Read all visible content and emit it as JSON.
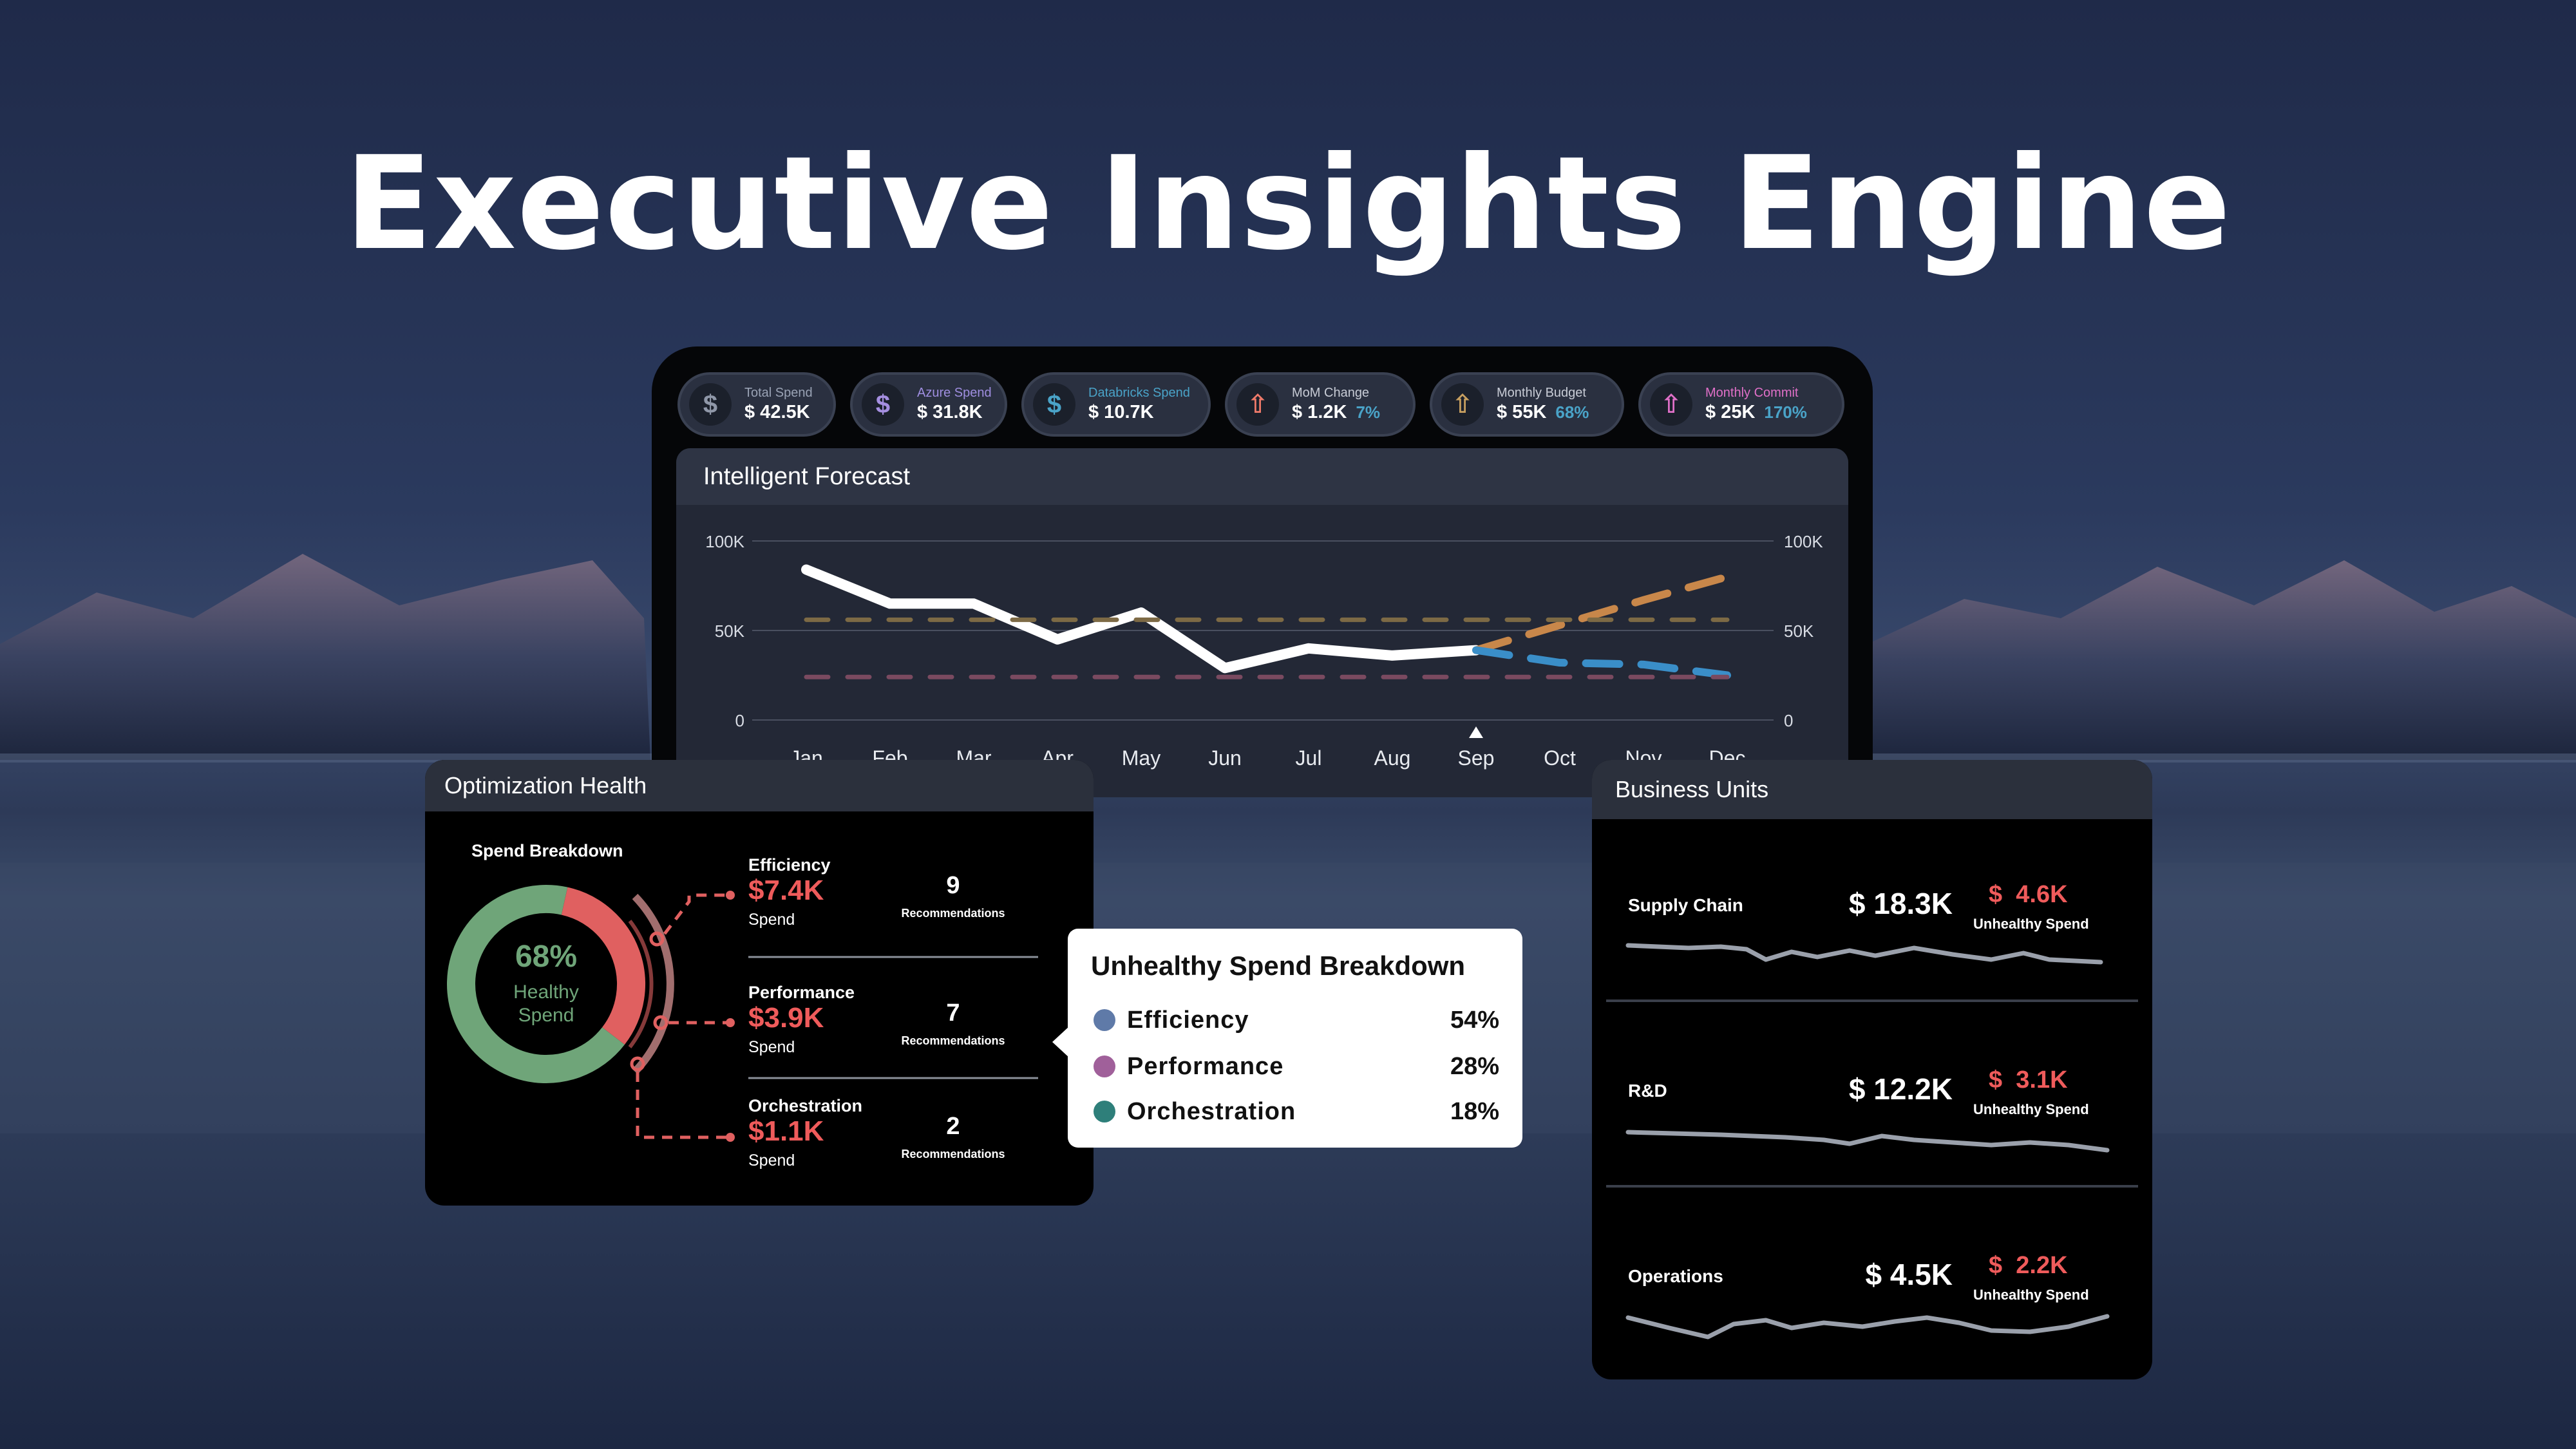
{
  "hero": {
    "title": "Executive Insights Engine"
  },
  "kpis": [
    {
      "label": "Total Spend",
      "value": "$ 42.5K",
      "icon": "dollar-icon",
      "icon_color": "#8f97a8",
      "label_color": "#9aa3b5"
    },
    {
      "label": "Azure Spend",
      "value": "$ 31.8K",
      "icon": "dollar-icon",
      "icon_color": "#a58fe0",
      "label_color": "#9f8ee0"
    },
    {
      "label": "Databricks Spend",
      "value": "$ 10.7K",
      "icon": "dollar-icon",
      "icon_color": "#4aa3c8",
      "label_color": "#4aa3c8"
    },
    {
      "label": "MoM Change",
      "value": "$ 1.2K",
      "pct": "7%",
      "icon": "arrow-up-icon",
      "icon_color": "#ef7a6a",
      "label_color": "#c8ccd6",
      "pct_color": "#4aa3c8"
    },
    {
      "label": "Monthly Budget",
      "value": "$ 55K",
      "pct": "68%",
      "icon": "arrow-up-icon",
      "icon_color": "#c8a060",
      "label_color": "#c8ccd6",
      "pct_color": "#4aa3c8"
    },
    {
      "label": "Monthly Commit",
      "value": "$ 25K",
      "pct": "170%",
      "icon": "arrow-up-icon",
      "icon_color": "#e070c8",
      "label_color": "#e070c8",
      "pct_color": "#4aa3c8"
    }
  ],
  "forecast": {
    "title": "Intelligent Forecast",
    "y_ticks_left": [
      "100K",
      "50K",
      "0"
    ],
    "y_ticks_right": [
      "100K",
      "50K",
      "0"
    ],
    "months": [
      "Jan",
      "Feb",
      "Mar",
      "Apr",
      "May",
      "Jun",
      "Jul",
      "Aug",
      "Sep",
      "Oct",
      "Nov",
      "Dec"
    ],
    "marker_month": "Sep",
    "chart_data": {
      "type": "line",
      "categories": [
        "Jan",
        "Feb",
        "Mar",
        "Apr",
        "May",
        "Jun",
        "Jul",
        "Aug",
        "Sep",
        "Oct",
        "Nov",
        "Dec"
      ],
      "ylim": [
        0,
        100000
      ],
      "series": [
        {
          "values": [
            84000,
            65000,
            65000,
            45000,
            60000,
            29000,
            40000,
            36000,
            39000,
            null,
            null,
            null
          ],
          "color": "#ffffff"
        },
        {
          "values": [
            null,
            null,
            null,
            null,
            null,
            null,
            null,
            null,
            39000,
            53000,
            67000,
            80000
          ],
          "color": "#c8874a"
        },
        {
          "values": [
            null,
            null,
            null,
            null,
            null,
            null,
            null,
            null,
            39000,
            32000,
            31000,
            25000
          ],
          "color": "#3a8ec8"
        },
        {
          "values": [
            56000,
            56000,
            56000,
            56000,
            56000,
            56000,
            56000,
            56000,
            56000,
            56000,
            56000,
            56000
          ],
          "color": "#7d6a45"
        },
        {
          "values": [
            24000,
            24000,
            24000,
            24000,
            24000,
            24000,
            24000,
            24000,
            24000,
            24000,
            24000,
            24000
          ],
          "color": "#7a4a60"
        }
      ]
    }
  },
  "optimization": {
    "title": "Optimization Health",
    "breakdown_title": "Spend Breakdown",
    "donut_pct": "68%",
    "donut_label_1": "Healthy",
    "donut_label_2": "Spend",
    "chart_data": {
      "type": "pie",
      "categories": [
        "Healthy Spend",
        "Unhealthy Spend"
      ],
      "values": [
        68,
        32
      ],
      "colors": [
        "#6fa579",
        "#e06060"
      ]
    },
    "items": [
      {
        "name": "Efficiency",
        "spend": "$7.4K",
        "spend_label": "Spend",
        "count": "9",
        "count_label": "Recommendations"
      },
      {
        "name": "Performance",
        "spend": "$3.9K",
        "spend_label": "Spend",
        "count": "7",
        "count_label": "Recommendations"
      },
      {
        "name": "Orchestration",
        "spend": "$1.1K",
        "spend_label": "Spend",
        "count": "2",
        "count_label": "Recommendations"
      }
    ]
  },
  "tooltip": {
    "title": "Unhealthy Spend Breakdown",
    "rows": [
      {
        "name": "Efficiency",
        "pct": "54%",
        "color": "#5f7aa8"
      },
      {
        "name": "Performance",
        "pct": "28%",
        "color": "#a0609a"
      },
      {
        "name": "Orchestration",
        "pct": "18%",
        "color": "#2e7f7a"
      }
    ]
  },
  "business_units": {
    "title": "Business Units",
    "units": [
      {
        "name": "Supply Chain",
        "spend": "$ 18.3K",
        "unhealthy": "$  4.6K",
        "unhealthy_label": "Unhealthy Spend"
      },
      {
        "name": "R&D",
        "spend": "$ 12.2K",
        "unhealthy": "$  3.1K",
        "unhealthy_label": "Unhealthy Spend"
      },
      {
        "name": "Operations",
        "spend": "$ 4.5K",
        "unhealthy": "$  2.2K",
        "unhealthy_label": "Unhealthy Spend"
      }
    ]
  }
}
